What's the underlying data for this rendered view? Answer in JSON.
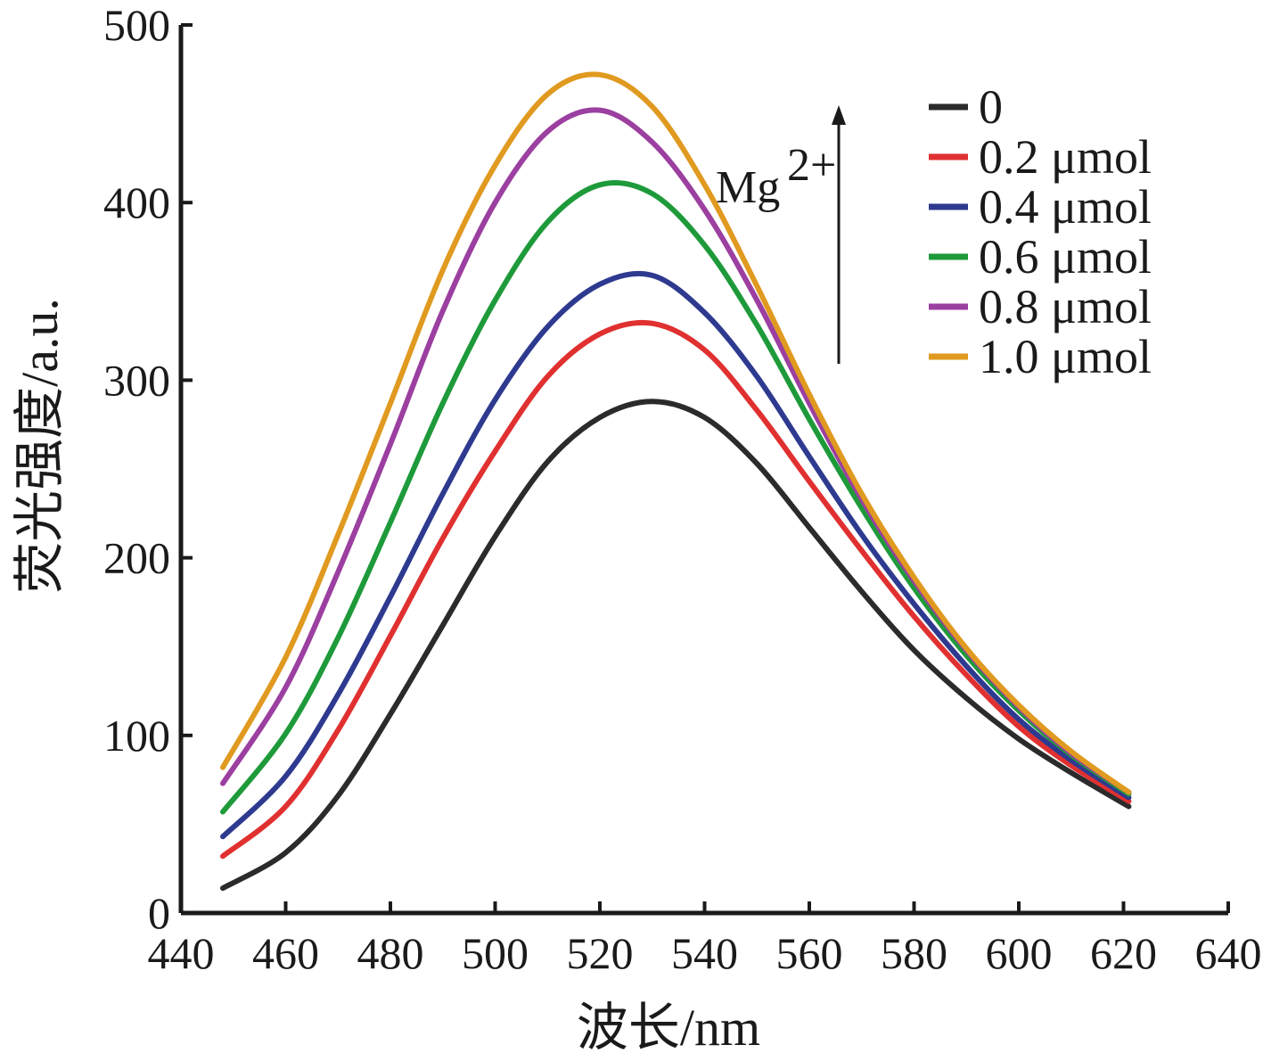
{
  "chart_data": {
    "type": "line",
    "title": "",
    "xlabel": "波长/nm",
    "ylabel": "荧光强度/a.u.",
    "xlim": [
      440,
      640
    ],
    "ylim": [
      0,
      500
    ],
    "xticks": [
      440,
      460,
      480,
      500,
      520,
      540,
      560,
      580,
      600,
      620,
      640
    ],
    "yticks": [
      0,
      100,
      200,
      300,
      400,
      500
    ],
    "grid": false,
    "legend_position": "top-right",
    "x": [
      448,
      460,
      470,
      480,
      490,
      500,
      510,
      520,
      530,
      540,
      550,
      560,
      570,
      580,
      590,
      600,
      610,
      621
    ],
    "series": [
      {
        "name": "0",
        "color": "#2b2b2b",
        "values": [
          14,
          34,
          66,
          112,
          162,
          212,
          254,
          279,
          288,
          279,
          253,
          217,
          181,
          148,
          121,
          98,
          79,
          60
        ]
      },
      {
        "name": "0.2 μmol",
        "color": "#e03030",
        "values": [
          32,
          60,
          103,
          156,
          211,
          260,
          302,
          326,
          332,
          317,
          283,
          243,
          204,
          167,
          134,
          105,
          83,
          63
        ]
      },
      {
        "name": "0.4 μmol",
        "color": "#2e3a8f",
        "values": [
          43,
          77,
          123,
          178,
          236,
          289,
          330,
          354,
          359,
          338,
          302,
          257,
          213,
          174,
          139,
          109,
          86,
          65
        ]
      },
      {
        "name": "0.6 μmol",
        "color": "#1e9a3a",
        "values": [
          57,
          101,
          155,
          220,
          287,
          345,
          389,
          410,
          405,
          376,
          331,
          278,
          228,
          183,
          145,
          114,
          89,
          67
        ]
      },
      {
        "name": "0.8 μmol",
        "color": "#9b3fa0",
        "values": [
          73,
          127,
          192,
          264,
          339,
          400,
          440,
          452,
          434,
          396,
          345,
          287,
          233,
          187,
          148,
          116,
          90,
          68
        ]
      },
      {
        "name": "1.0 μmol",
        "color": "#e09a20",
        "values": [
          82,
          144,
          213,
          287,
          362,
          421,
          461,
          472,
          454,
          410,
          353,
          292,
          236,
          189,
          149,
          117,
          91,
          68
        ]
      }
    ],
    "annotations": [
      {
        "text": "Mg",
        "superscript": "2+",
        "arrow": "up"
      }
    ]
  }
}
